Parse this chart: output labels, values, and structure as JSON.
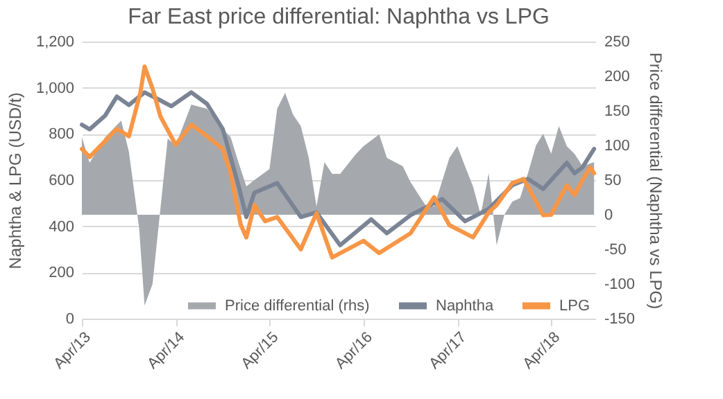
{
  "chart_data": {
    "type": "line",
    "title": "Far East price differential: Naphtha vs LPG",
    "ylabel": "Naphtha & LPG (USD/t)",
    "y2label": "Price differential (Naphtha vs LPG)",
    "xlim": [
      "2013-04-01",
      "2018-09-20"
    ],
    "xticks": [
      {
        "value": "2013-04-01",
        "label": "Apr/13"
      },
      {
        "value": "2014-04-01",
        "label": "Apr/14"
      },
      {
        "value": "2015-04-01",
        "label": "Apr/15"
      },
      {
        "value": "2016-04-01",
        "label": "Apr/16"
      },
      {
        "value": "2017-04-01",
        "label": "Apr/17"
      },
      {
        "value": "2018-04-01",
        "label": "Apr/18"
      }
    ],
    "ylim": [
      0,
      1200
    ],
    "yticks": [
      0,
      200,
      400,
      600,
      800,
      {
        "value": 1000,
        "label": "1,000"
      },
      {
        "value": 1200,
        "label": "1,200"
      }
    ],
    "y2lim": [
      -150,
      250
    ],
    "y2ticks": [
      -150,
      -100,
      -50,
      0,
      50,
      100,
      150,
      200,
      250
    ],
    "grid": "y",
    "legend": "bottom",
    "line_style": "solid",
    "series": [
      {
        "name": "Price differential (rhs)",
        "type": "area",
        "axis": "y2",
        "color": "#a5a9ae",
        "x": [
          "2013-04-01",
          "2013-05-01",
          "2013-07-01",
          "2013-09-01",
          "2013-10-01",
          "2013-11-10",
          "2013-12-01",
          "2014-01-01",
          "2014-02-01",
          "2014-03-01",
          "2014-04-01",
          "2014-06-01",
          "2014-08-01",
          "2014-10-01",
          "2014-11-01",
          "2014-12-01",
          "2015-01-01",
          "2015-02-01",
          "2015-04-01",
          "2015-05-01",
          "2015-06-01",
          "2015-07-01",
          "2015-08-01",
          "2015-09-01",
          "2015-10-01",
          "2015-11-01",
          "2015-12-01",
          "2016-01-01",
          "2016-03-01",
          "2016-04-01",
          "2016-06-01",
          "2016-07-01",
          "2016-09-01",
          "2016-10-01",
          "2016-12-01",
          "2017-01-01",
          "2017-03-01",
          "2017-04-01",
          "2017-05-01",
          "2017-06-01",
          "2017-07-01",
          "2017-08-01",
          "2017-09-01",
          "2017-10-01",
          "2017-11-01",
          "2017-12-01",
          "2018-01-01",
          "2018-02-01",
          "2018-03-01",
          "2018-04-01",
          "2018-05-01",
          "2018-06-01",
          "2018-07-01",
          "2018-08-01",
          "2018-09-15"
        ],
        "values": [
          112,
          75,
          112,
          136,
          91,
          -20,
          -131,
          -100,
          10,
          110,
          100,
          159,
          153,
          124,
          112,
          76,
          41,
          50,
          66,
          153,
          176,
          145,
          128,
          82,
          12,
          76,
          59,
          59,
          87,
          99,
          116,
          82,
          70,
          47,
          12,
          12,
          82,
          99,
          70,
          41,
          0,
          60,
          -44,
          0,
          19,
          24,
          60,
          100,
          117,
          88,
          128,
          99,
          88,
          70,
          76
        ]
      },
      {
        "name": "Naphtha",
        "color": "#7b8494",
        "x": [
          "2013-04-01",
          "2013-05-01",
          "2013-07-01",
          "2013-08-15",
          "2013-10-01",
          "2013-12-01",
          "2014-02-01",
          "2014-03-15",
          "2014-06-01",
          "2014-08-01",
          "2014-10-01",
          "2014-12-01",
          "2015-01-01",
          "2015-02-01",
          "2015-05-01",
          "2015-08-01",
          "2015-10-01",
          "2016-01-01",
          "2016-05-01",
          "2016-07-01",
          "2016-10-01",
          "2017-02-01",
          "2017-05-01",
          "2017-08-01",
          "2017-11-01",
          "2018-01-01",
          "2018-03-01",
          "2018-06-01",
          "2018-07-01",
          "2018-08-01",
          "2018-09-15"
        ],
        "values": [
          840,
          820,
          880,
          962,
          925,
          980,
          945,
          920,
          980,
          930,
          822,
          578,
          440,
          545,
          587,
          440,
          460,
          318,
          430,
          370,
          448,
          518,
          422,
          475,
          578,
          605,
          562,
          675,
          630,
          655,
          735
        ]
      },
      {
        "name": "LPG",
        "color": "#f79646",
        "x": [
          "2013-04-01",
          "2013-05-01",
          "2013-07-01",
          "2013-08-15",
          "2013-10-01",
          "2013-11-15",
          "2013-12-01",
          "2014-01-01",
          "2014-02-01",
          "2014-04-01",
          "2014-06-01",
          "2014-08-01",
          "2014-10-01",
          "2014-11-01",
          "2014-12-10",
          "2015-01-01",
          "2015-02-01",
          "2015-03-15",
          "2015-05-01",
          "2015-08-01",
          "2015-10-01",
          "2015-12-01",
          "2016-04-01",
          "2016-06-01",
          "2016-10-01",
          "2017-01-01",
          "2017-03-01",
          "2017-05-01",
          "2017-06-01",
          "2017-08-01",
          "2017-09-01",
          "2017-11-01",
          "2017-12-15",
          "2018-02-01",
          "2018-03-01",
          "2018-04-01",
          "2018-06-01",
          "2018-07-01",
          "2018-08-01",
          "2018-09-01",
          "2018-09-15"
        ],
        "values": [
          735,
          700,
          770,
          822,
          790,
          980,
          1092,
          996,
          875,
          753,
          840,
          790,
          735,
          630,
          407,
          352,
          492,
          422,
          440,
          300,
          457,
          265,
          337,
          284,
          370,
          526,
          405,
          370,
          352,
          460,
          492,
          587,
          605,
          508,
          448,
          450,
          578,
          535,
          600,
          655,
          630
        ]
      }
    ]
  }
}
